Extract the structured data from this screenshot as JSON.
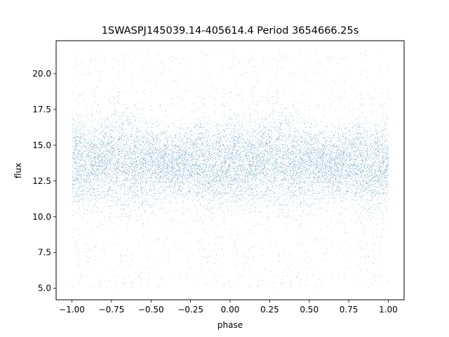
{
  "chart_data": {
    "type": "scatter",
    "title": "1SWASPJ145039.14-405614.4 Period 3654666.25s",
    "xlabel": "phase",
    "ylabel": "flux",
    "xlim": [
      -1.1,
      1.1
    ],
    "ylim": [
      4.2,
      22.3
    ],
    "x_ticks": [
      -1.0,
      -0.75,
      -0.5,
      -0.25,
      0.0,
      0.25,
      0.5,
      0.75,
      1.0
    ],
    "x_tick_labels": [
      "−1.00",
      "−0.75",
      "−0.50",
      "−0.25",
      "0.00",
      "0.25",
      "0.50",
      "0.75",
      "1.00"
    ],
    "y_ticks": [
      5.0,
      7.5,
      10.0,
      12.5,
      15.0,
      17.5,
      20.0
    ],
    "y_tick_labels": [
      "5.0",
      "7.5",
      "10.0",
      "12.5",
      "15.0",
      "17.5",
      "20.0"
    ],
    "grid": false,
    "marker_color": "#1f77b4",
    "series": [
      {
        "phase_range": [
          -1.0,
          1.0
        ],
        "flux_center": 13.6,
        "flux_core_range": [
          10.5,
          16.5
        ],
        "flux_full_range": [
          5.0,
          21.5
        ],
        "phase_symmetry": "mirrored about phase 0 (points repeated at phase and phase ± 1)",
        "phase_profile": [
          {
            "phase": -1.0,
            "flux_low": 10.2,
            "flux_high": 17.5
          },
          {
            "phase": -0.9,
            "flux_low": 10.0,
            "flux_high": 17.0
          },
          {
            "phase": -0.8,
            "flux_low": 9.8,
            "flux_high": 17.8
          },
          {
            "phase": -0.7,
            "flux_low": 9.6,
            "flux_high": 18.5
          },
          {
            "phase": -0.6,
            "flux_low": 10.0,
            "flux_high": 17.0
          },
          {
            "phase": -0.5,
            "flux_low": 10.5,
            "flux_high": 17.0
          },
          {
            "phase": -0.4,
            "flux_low": 11.0,
            "flux_high": 16.5
          },
          {
            "phase": -0.3,
            "flux_low": 10.8,
            "flux_high": 16.0
          },
          {
            "phase": -0.2,
            "flux_low": 10.5,
            "flux_high": 16.5
          },
          {
            "phase": -0.1,
            "flux_low": 10.2,
            "flux_high": 17.0
          },
          {
            "phase": 0.0,
            "flux_low": 10.0,
            "flux_high": 17.5
          },
          {
            "phase": 0.1,
            "flux_low": 10.2,
            "flux_high": 17.0
          },
          {
            "phase": 0.2,
            "flux_low": 10.5,
            "flux_high": 17.5
          },
          {
            "phase": 0.3,
            "flux_low": 9.8,
            "flux_high": 18.5
          },
          {
            "phase": 0.4,
            "flux_low": 10.2,
            "flux_high": 17.0
          },
          {
            "phase": 0.5,
            "flux_low": 10.5,
            "flux_high": 17.0
          },
          {
            "phase": 0.6,
            "flux_low": 11.0,
            "flux_high": 16.5
          },
          {
            "phase": 0.7,
            "flux_low": 10.8,
            "flux_high": 16.5
          },
          {
            "phase": 0.8,
            "flux_low": 10.5,
            "flux_high": 17.5
          },
          {
            "phase": 0.9,
            "flux_low": 10.0,
            "flux_high": 17.0
          },
          {
            "phase": 1.0,
            "flux_low": 10.2,
            "flux_high": 17.5
          }
        ]
      }
    ]
  }
}
